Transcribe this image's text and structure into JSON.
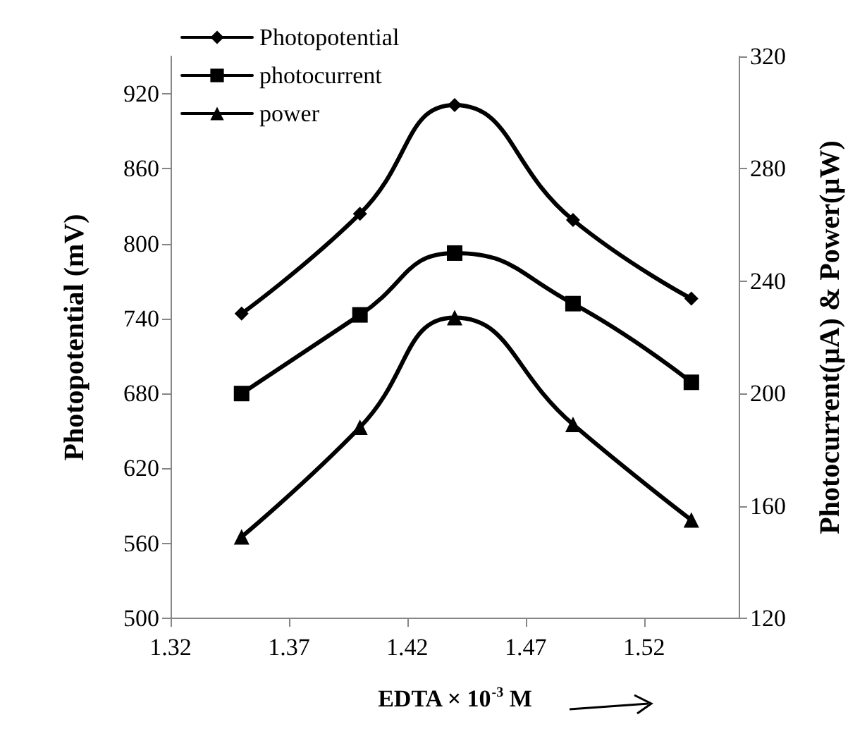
{
  "chart_data": {
    "type": "line",
    "xlabel": "EDTA × 10$^{-3}$ M",
    "ylabel": "Photopotential (mV)",
    "y2label": "Photocurrent(µA) & Power(µW)",
    "x": [
      1.35,
      1.4,
      1.44,
      1.49,
      1.54
    ],
    "series": [
      {
        "name": "Photopotential",
        "color": "#000000",
        "marker": "diamond",
        "values": [
          744,
          824,
          911,
          819,
          756
        ]
      },
      {
        "name": "photocurrent",
        "color": "#000000",
        "marker": "square",
        "axis": "y2",
        "values": [
          200,
          228,
          250,
          232,
          204
        ]
      },
      {
        "name": "power",
        "color": "#000000",
        "marker": "triangle",
        "axis": "y2",
        "values": [
          149,
          188,
          227,
          189,
          155
        ]
      }
    ],
    "xlim": [
      1.32,
      1.56
    ],
    "xticks": [
      1.32,
      1.37,
      1.42,
      1.47,
      1.52
    ],
    "ylim": [
      500,
      950
    ],
    "yticks": [
      500,
      560,
      620,
      680,
      740,
      800,
      860,
      920
    ],
    "y2lim": [
      120,
      320
    ],
    "y2ticks": [
      120,
      160,
      200,
      240,
      280,
      320
    ],
    "grid": false,
    "legend": "top left",
    "line_style": "solid"
  }
}
